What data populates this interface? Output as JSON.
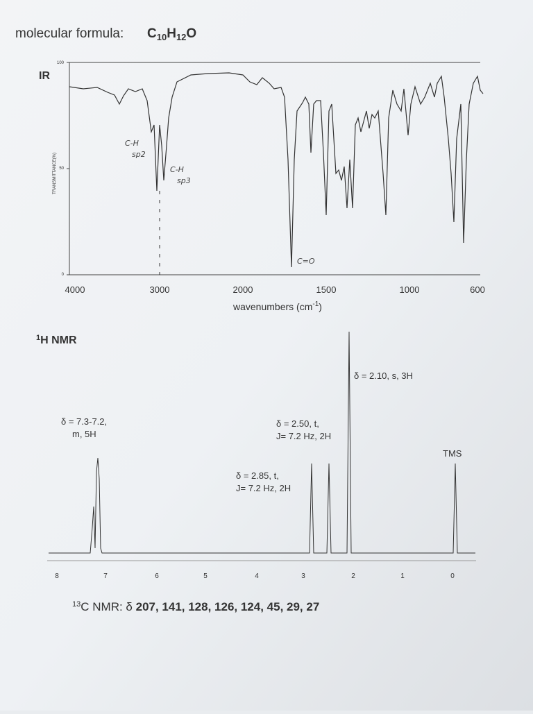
{
  "formula": {
    "label": "molecular formula:",
    "parts": [
      "C",
      "10",
      "H",
      "12",
      "O"
    ]
  },
  "ir": {
    "label": "IR",
    "y_label": "TRANSMITTANCE(%)",
    "yticks": [
      "100",
      "50",
      "0"
    ],
    "xticks": [
      "4000",
      "3000",
      "2000",
      "1500",
      "1000",
      "600"
    ],
    "x_label": "wavenumbers (cm",
    "x_label_sup": "-1",
    "x_label_end": ")",
    "annotations": [
      "C-H",
      "sp2",
      "C-H",
      "sp3",
      "C=O"
    ]
  },
  "h_nmr": {
    "title_sup": "1",
    "title": "H NMR",
    "annotations": [
      {
        "lines": [
          "δ = 7.3-7.2,",
          "m, 5H"
        ]
      },
      {
        "lines": [
          "δ = 2.85, t,",
          "J= 7.2 Hz, 2H"
        ]
      },
      {
        "lines": [
          "δ = 2.50, t,",
          "J= 7.2 Hz, 2H"
        ]
      },
      {
        "lines": [
          "δ = 2.10, s, 3H"
        ]
      },
      {
        "lines": [
          "TMS"
        ]
      }
    ],
    "xticks": [
      "8",
      "7",
      "6",
      "5",
      "4",
      "3",
      "2",
      "1",
      "0"
    ]
  },
  "c_nmr": {
    "sup": "13",
    "label": "C NMR: δ",
    "values": "207, 141, 128, 126, 124, 45, 29, 27"
  }
}
